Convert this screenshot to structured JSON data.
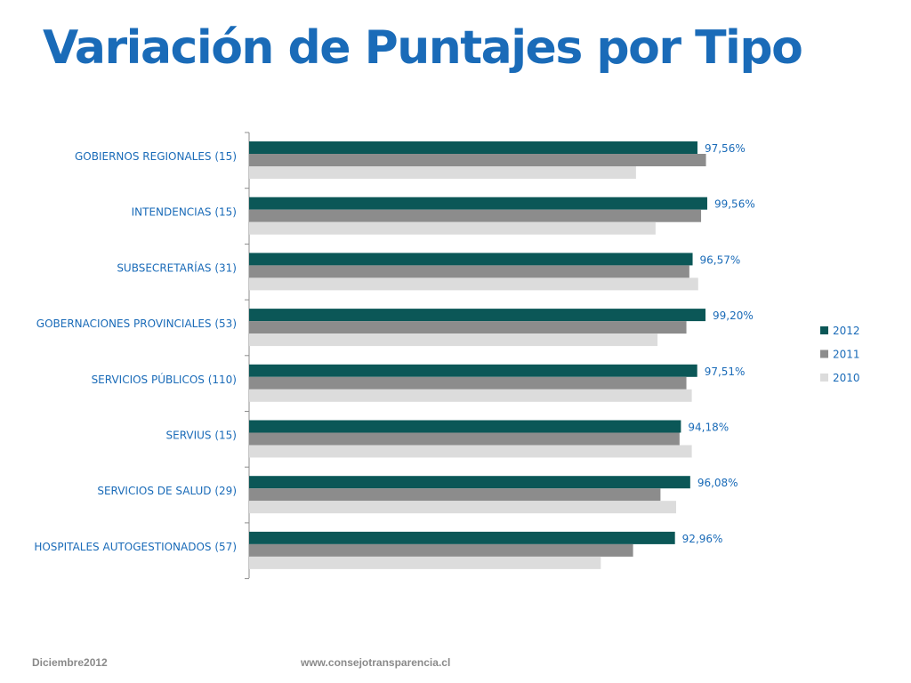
{
  "slide": {
    "title": "Variación de Puntajes por Tipo",
    "footer_date": "Diciembre2012",
    "footer_url": "www.consejotransparencia.cl"
  },
  "colors": {
    "series_2012": "#0b5757",
    "series_2011": "#8c8c8c",
    "series_2010": "#dcdcdc",
    "text": "#1a6bb8",
    "axis": "#8c8c8c"
  },
  "chart_data": {
    "type": "bar",
    "orientation": "horizontal",
    "categories": [
      "GOBIERNOS REGIONALES  (15)",
      "INTENDENCIAS  (15)",
      "SUBSECRETARÍAS  (31)",
      "GOBERNACIONES PROVINCIALES  (53)",
      "SERVICIOS PÚBLICOS  (110)",
      "SERVIUS (15)",
      "SERVICIOS DE SALUD  (29)",
      "HOSPITALES AUTOGESTIONADOS (57)"
    ],
    "series": [
      {
        "name": "2012",
        "values": [
          97.56,
          99.56,
          96.57,
          99.2,
          97.51,
          94.18,
          96.08,
          92.96
        ],
        "labels": [
          "97,56%",
          "99,56%",
          "96,57%",
          "99,20%",
          "97,51%",
          "94,18%",
          "96,08%",
          "92,96%"
        ]
      },
      {
        "name": "2011",
        "values": [
          99.3,
          98.3,
          95.9,
          95.3,
          95.3,
          93.9,
          90.0,
          84.4
        ]
      },
      {
        "name": "2010",
        "values": [
          85.0,
          89.0,
          97.7,
          89.4,
          96.4,
          96.4,
          93.2,
          77.8
        ]
      }
    ],
    "xlim": [
      0,
      100
    ],
    "grid": false,
    "legend": "right"
  }
}
